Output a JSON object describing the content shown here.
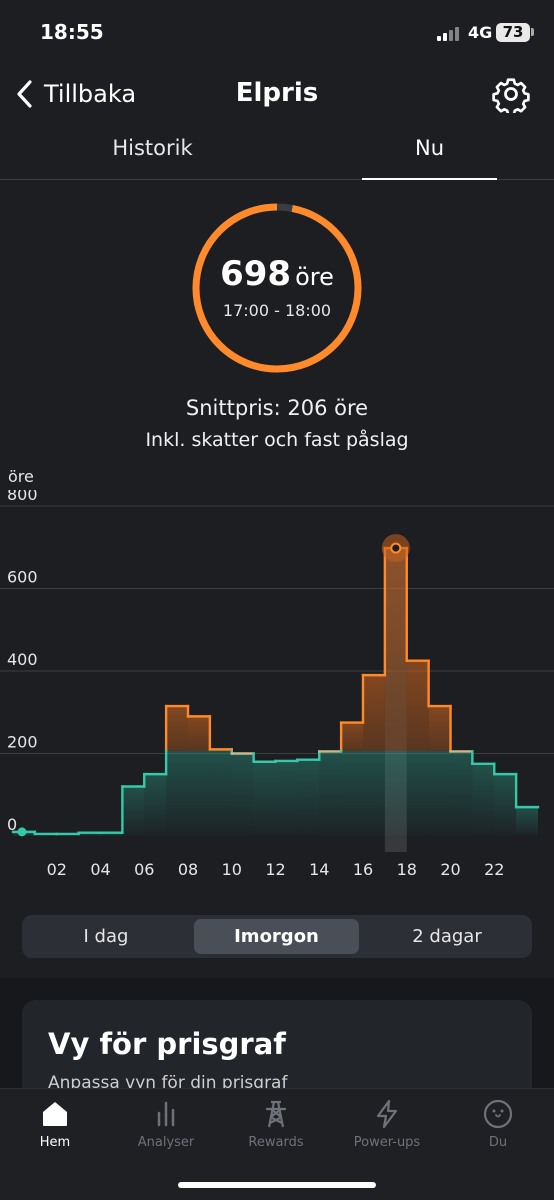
{
  "status_bar": {
    "time": "18:55",
    "network": "4G",
    "battery": "73"
  },
  "header": {
    "back_label": "Tillbaka",
    "title": "Elpris"
  },
  "tabs": [
    {
      "label": "Historik",
      "active": false
    },
    {
      "label": "Nu",
      "active": true
    }
  ],
  "current_price": {
    "value": "698",
    "unit": "öre",
    "time_range": "17:00 - 18:00",
    "ring_fraction": 0.97,
    "ring_color": "#ff8a2b"
  },
  "summary": {
    "average_label": "Snittpris:",
    "average_value": "206 öre",
    "note": "Inkl. skatter och fast påslag"
  },
  "chart_data": {
    "type": "area",
    "ylabel": "öre",
    "ylim": [
      0,
      800
    ],
    "yticks": [
      0,
      200,
      400,
      600,
      800
    ],
    "xlim": [
      0,
      24
    ],
    "xticks": [
      "02",
      "04",
      "06",
      "08",
      "10",
      "12",
      "14",
      "16",
      "18",
      "20",
      "22"
    ],
    "hours": [
      0,
      1,
      2,
      3,
      4,
      5,
      6,
      7,
      8,
      9,
      10,
      11,
      12,
      13,
      14,
      15,
      16,
      17,
      18,
      19,
      20,
      21,
      22,
      23
    ],
    "values": [
      10,
      5,
      5,
      8,
      8,
      120,
      150,
      315,
      290,
      210,
      200,
      180,
      182,
      185,
      205,
      275,
      390,
      698,
      425,
      315,
      205,
      175,
      150,
      70
    ],
    "highlight_hour": 17,
    "threshold": 206,
    "colors": {
      "low": "#35c9a8",
      "high": "#ff8a2b"
    }
  },
  "segments": [
    {
      "label": "I dag",
      "active": false
    },
    {
      "label": "Imorgon",
      "active": true
    },
    {
      "label": "2 dagar",
      "active": false
    }
  ],
  "card": {
    "title": "Vy för prisgraf",
    "subtitle": "Anpassa vyn för din prisgraf"
  },
  "bottom_nav": [
    {
      "label": "Hem",
      "icon": "home-icon",
      "active": true
    },
    {
      "label": "Analyser",
      "icon": "bar-chart-icon",
      "active": false
    },
    {
      "label": "Rewards",
      "icon": "power-tower-icon",
      "active": false
    },
    {
      "label": "Power-ups",
      "icon": "lightning-icon",
      "active": false
    },
    {
      "label": "Du",
      "icon": "smiley-icon",
      "active": false
    }
  ]
}
